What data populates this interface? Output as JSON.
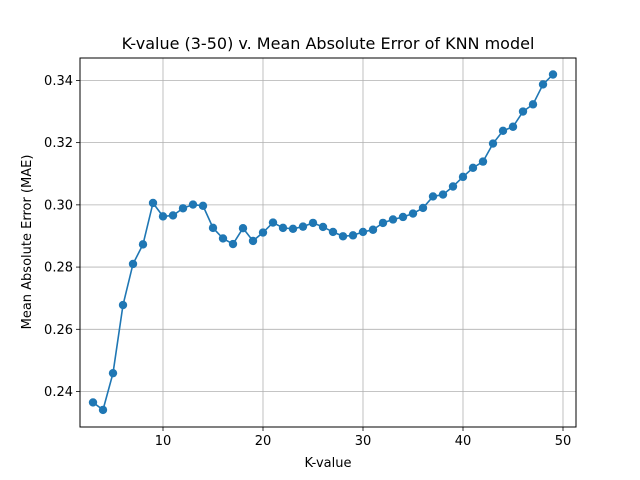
{
  "chart_data": {
    "type": "line",
    "title": "K-value (3-50) v. Mean Absolute Error of KNN model",
    "xlabel": "K-value",
    "ylabel": "Mean Absolute Error (MAE)",
    "xlim": [
      1.7,
      51.3
    ],
    "ylim": [
      0.2286,
      0.3472
    ],
    "xticks": [
      10,
      20,
      30,
      40,
      50
    ],
    "yticks": [
      0.24,
      0.26,
      0.28,
      0.3,
      0.32,
      0.34
    ],
    "ytick_labels": [
      "0.24",
      "0.26",
      "0.28",
      "0.30",
      "0.32",
      "0.34"
    ],
    "grid": true,
    "series": [
      {
        "color": "#1f77b4",
        "marker": "circle",
        "x": [
          3,
          4,
          5,
          6,
          7,
          8,
          9,
          10,
          11,
          12,
          13,
          14,
          15,
          16,
          17,
          18,
          19,
          20,
          21,
          22,
          23,
          24,
          25,
          26,
          27,
          28,
          29,
          30,
          31,
          32,
          33,
          34,
          35,
          36,
          37,
          38,
          39,
          40,
          41,
          42,
          43,
          44,
          45,
          46,
          47,
          48,
          49
        ],
        "y": [
          0.2365,
          0.2341,
          0.2459,
          0.2678,
          0.281,
          0.2873,
          0.3006,
          0.2963,
          0.2966,
          0.2989,
          0.3001,
          0.2997,
          0.2926,
          0.2892,
          0.2874,
          0.2925,
          0.2884,
          0.2911,
          0.2943,
          0.2926,
          0.2923,
          0.293,
          0.2942,
          0.2929,
          0.2913,
          0.2899,
          0.2902,
          0.2913,
          0.292,
          0.2942,
          0.2953,
          0.2961,
          0.2972,
          0.299,
          0.3027,
          0.3033,
          0.3059,
          0.309,
          0.3119,
          0.3139,
          0.3197,
          0.3238,
          0.3251,
          0.33,
          0.3323,
          0.3387,
          0.3419
        ]
      }
    ]
  }
}
